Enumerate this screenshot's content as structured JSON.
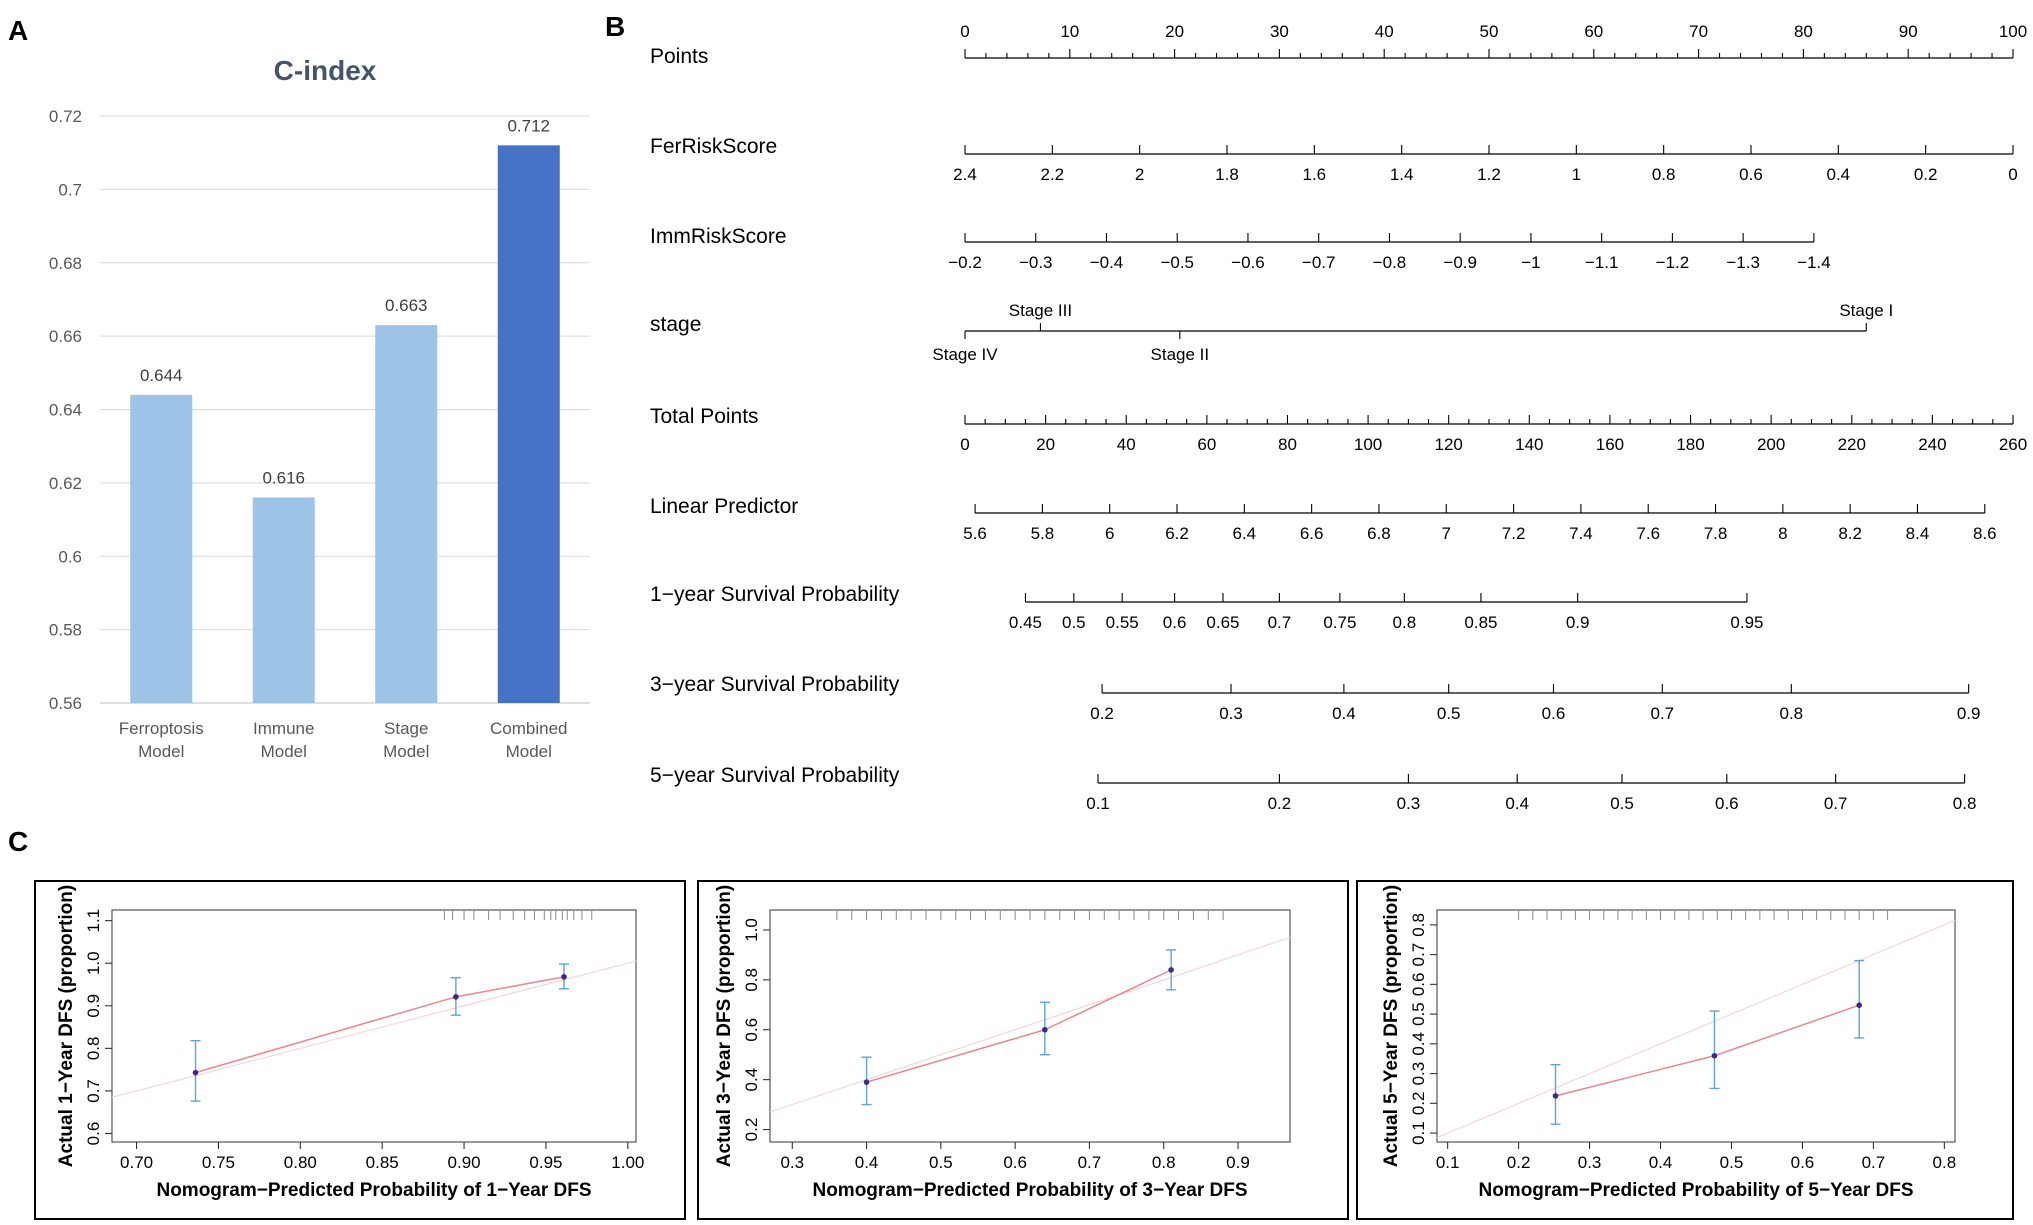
{
  "panels": {
    "a": "A",
    "b": "B",
    "c": "C"
  },
  "chart_data": [
    {
      "type": "bar",
      "title": "C-index",
      "categories": [
        "Ferroptosis Model",
        "Immune Model",
        "Stage Model",
        "Combined Model"
      ],
      "category_lines": [
        [
          "Ferroptosis",
          "Model"
        ],
        [
          "Immune",
          "Model"
        ],
        [
          "Stage",
          "Model"
        ],
        [
          "Combined",
          "Model"
        ]
      ],
      "values": [
        0.644,
        0.616,
        0.663,
        0.712
      ],
      "value_labels": [
        "0.644",
        "0.616",
        "0.663",
        "0.712"
      ],
      "ylim": [
        0.56,
        0.72
      ],
      "yticks": [
        "0.56",
        "0.58",
        "0.6",
        "0.62",
        "0.64",
        "0.66",
        "0.68",
        "0.7",
        "0.72"
      ],
      "grid": true,
      "colors": [
        "#9dc3e6",
        "#9dc3e6",
        "#9dc3e6",
        "#4472c4"
      ]
    },
    {
      "type": "nomogram",
      "scales": [
        {
          "name": "Points",
          "domain": [
            0,
            100
          ],
          "labels": [
            {
              "v": 0,
              "t": "0"
            },
            {
              "v": 10,
              "t": "10"
            },
            {
              "v": 20,
              "t": "20"
            },
            {
              "v": 30,
              "t": "30"
            },
            {
              "v": 40,
              "t": "40"
            },
            {
              "v": 50,
              "t": "50"
            },
            {
              "v": 60,
              "t": "60"
            },
            {
              "v": 70,
              "t": "70"
            },
            {
              "v": 80,
              "t": "80"
            },
            {
              "v": 90,
              "t": "90"
            },
            {
              "v": 100,
              "t": "100"
            }
          ],
          "minor_step": 2,
          "label_pos": "above"
        },
        {
          "name": "FerRiskScore",
          "domain": [
            2.4,
            0
          ],
          "labels": [
            {
              "v": 2.4,
              "t": "2.4"
            },
            {
              "v": 2.2,
              "t": "2.2"
            },
            {
              "v": 2,
              "t": "2"
            },
            {
              "v": 1.8,
              "t": "1.8"
            },
            {
              "v": 1.6,
              "t": "1.6"
            },
            {
              "v": 1.4,
              "t": "1.4"
            },
            {
              "v": 1.2,
              "t": "1.2"
            },
            {
              "v": 1,
              "t": "1"
            },
            {
              "v": 0.8,
              "t": "0.8"
            },
            {
              "v": 0.6,
              "t": "0.6"
            },
            {
              "v": 0.4,
              "t": "0.4"
            },
            {
              "v": 0.2,
              "t": "0.2"
            },
            {
              "v": 0,
              "t": "0"
            }
          ],
          "label_pos": "below"
        },
        {
          "name": "ImmRiskScore",
          "domain": [
            -0.2,
            -1.4
          ],
          "labels": [
            {
              "v": -0.2,
              "t": "−0.2"
            },
            {
              "v": -0.3,
              "t": "−0.3"
            },
            {
              "v": -0.4,
              "t": "−0.4"
            },
            {
              "v": -0.5,
              "t": "−0.5"
            },
            {
              "v": -0.6,
              "t": "−0.6"
            },
            {
              "v": -0.7,
              "t": "−0.7"
            },
            {
              "v": -0.8,
              "t": "−0.8"
            },
            {
              "v": -0.9,
              "t": "−0.9"
            },
            {
              "v": -1.0,
              "t": "−1"
            },
            {
              "v": -1.1,
              "t": "−1.1"
            },
            {
              "v": -1.2,
              "t": "−1.2"
            },
            {
              "v": -1.3,
              "t": "−1.3"
            },
            {
              "v": -1.4,
              "t": "−1.4"
            }
          ],
          "label_pos": "below"
        },
        {
          "name": "stage",
          "type": "categorical",
          "labels": [
            {
              "t": "Stage IV",
              "points": 0,
              "pos": "below"
            },
            {
              "t": "Stage III",
              "points": 7.2,
              "pos": "above"
            },
            {
              "t": "Stage II",
              "points": 20.5,
              "pos": "below"
            },
            {
              "t": "Stage I",
              "points": 86,
              "pos": "above"
            }
          ]
        },
        {
          "name": "Total Points",
          "domain": [
            0,
            260
          ],
          "labels": [
            {
              "v": 0,
              "t": "0"
            },
            {
              "v": 20,
              "t": "20"
            },
            {
              "v": 40,
              "t": "40"
            },
            {
              "v": 60,
              "t": "60"
            },
            {
              "v": 80,
              "t": "80"
            },
            {
              "v": 100,
              "t": "100"
            },
            {
              "v": 120,
              "t": "120"
            },
            {
              "v": 140,
              "t": "140"
            },
            {
              "v": 160,
              "t": "160"
            },
            {
              "v": 180,
              "t": "180"
            },
            {
              "v": 200,
              "t": "200"
            },
            {
              "v": 220,
              "t": "220"
            },
            {
              "v": 240,
              "t": "240"
            },
            {
              "v": 260,
              "t": "260"
            }
          ],
          "minor_step": 5,
          "label_pos": "below"
        },
        {
          "name": "Linear Predictor",
          "linear_domain": [
            5.6,
            8.6
          ],
          "total_points_at_ends": [
            2.5,
            253
          ],
          "labels": [
            {
              "v": 5.6,
              "t": "5.6"
            },
            {
              "v": 5.8,
              "t": "5.8"
            },
            {
              "v": 6,
              "t": "6"
            },
            {
              "v": 6.2,
              "t": "6.2"
            },
            {
              "v": 6.4,
              "t": "6.4"
            },
            {
              "v": 6.6,
              "t": "6.6"
            },
            {
              "v": 6.8,
              "t": "6.8"
            },
            {
              "v": 7,
              "t": "7"
            },
            {
              "v": 7.2,
              "t": "7.2"
            },
            {
              "v": 7.4,
              "t": "7.4"
            },
            {
              "v": 7.6,
              "t": "7.6"
            },
            {
              "v": 7.8,
              "t": "7.8"
            },
            {
              "v": 8,
              "t": "8"
            },
            {
              "v": 8.2,
              "t": "8.2"
            },
            {
              "v": 8.4,
              "t": "8.4"
            },
            {
              "v": 8.6,
              "t": "8.6"
            }
          ],
          "label_pos": "below"
        },
        {
          "name": "1−year Survival Probability",
          "label_pos": "below",
          "labels": [
            {
              "tp": 15,
              "t": "0.45"
            },
            {
              "tp": 27,
              "t": "0.5"
            },
            {
              "tp": 39,
              "t": "0.55"
            },
            {
              "tp": 52,
              "t": "0.6"
            },
            {
              "tp": 64,
              "t": "0.65"
            },
            {
              "tp": 78,
              "t": "0.7"
            },
            {
              "tp": 93,
              "t": "0.75"
            },
            {
              "tp": 109,
              "t": "0.8"
            },
            {
              "tp": 128,
              "t": "0.85"
            },
            {
              "tp": 152,
              "t": "0.9"
            },
            {
              "tp": 194,
              "t": "0.95"
            }
          ]
        },
        {
          "name": "3−year Survival Probability",
          "label_pos": "below",
          "labels": [
            {
              "tp": 34,
              "t": "0.2"
            },
            {
              "tp": 66,
              "t": "0.3"
            },
            {
              "tp": 94,
              "t": "0.4"
            },
            {
              "tp": 120,
              "t": "0.5"
            },
            {
              "tp": 146,
              "t": "0.6"
            },
            {
              "tp": 173,
              "t": "0.7"
            },
            {
              "tp": 205,
              "t": "0.8"
            },
            {
              "tp": 249,
              "t": "0.9"
            }
          ]
        },
        {
          "name": "5−year Survival Probability",
          "label_pos": "below",
          "labels": [
            {
              "tp": 33,
              "t": "0.1"
            },
            {
              "tp": 78,
              "t": "0.2"
            },
            {
              "tp": 110,
              "t": "0.3"
            },
            {
              "tp": 137,
              "t": "0.4"
            },
            {
              "tp": 163,
              "t": "0.5"
            },
            {
              "tp": 189,
              "t": "0.6"
            },
            {
              "tp": 216,
              "t": "0.7"
            },
            {
              "tp": 248,
              "t": "0.8"
            }
          ]
        }
      ]
    },
    {
      "type": "scatter",
      "xlabel": "Nomogram−Predicted Probability of 1−Year DFS",
      "ylabel": "Actual 1−Year DFS (proportion)",
      "xlim": [
        0.685,
        1.005
      ],
      "ylim": [
        0.58,
        1.125
      ],
      "xticks": [
        {
          "v": 0.7,
          "t": "0.70"
        },
        {
          "v": 0.75,
          "t": "0.75"
        },
        {
          "v": 0.8,
          "t": "0.80"
        },
        {
          "v": 0.85,
          "t": "0.85"
        },
        {
          "v": 0.9,
          "t": "0.90"
        },
        {
          "v": 0.95,
          "t": "0.95"
        },
        {
          "v": 1.0,
          "t": "1.00"
        }
      ],
      "yticks": [
        {
          "v": 0.6,
          "t": "0.6"
        },
        {
          "v": 0.7,
          "t": "0.7"
        },
        {
          "v": 0.8,
          "t": "0.8"
        },
        {
          "v": 0.9,
          "t": "0.9"
        },
        {
          "v": 1.0,
          "t": "1.0"
        },
        {
          "v": 1.1,
          "t": "1.1"
        }
      ],
      "points": [
        {
          "x": 0.736,
          "y": 0.743,
          "lo": 0.676,
          "hi": 0.818
        },
        {
          "x": 0.895,
          "y": 0.921,
          "lo": 0.878,
          "hi": 0.966
        },
        {
          "x": 0.961,
          "y": 0.968,
          "lo": 0.94,
          "hi": 0.998
        }
      ],
      "rug": [
        0.888,
        0.893,
        0.9,
        0.906,
        0.915,
        0.922,
        0.93,
        0.937,
        0.943,
        0.949,
        0.953,
        0.956,
        0.96,
        0.963,
        0.967,
        0.972,
        0.978
      ]
    },
    {
      "type": "scatter",
      "xlabel": "Nomogram−Predicted Probability of 3−Year DFS",
      "ylabel": "Actual 3−Year DFS (proportion)",
      "xlim": [
        0.27,
        0.97
      ],
      "ylim": [
        0.15,
        1.08
      ],
      "xticks": [
        {
          "v": 0.3,
          "t": "0.3"
        },
        {
          "v": 0.4,
          "t": "0.4"
        },
        {
          "v": 0.5,
          "t": "0.5"
        },
        {
          "v": 0.6,
          "t": "0.6"
        },
        {
          "v": 0.7,
          "t": "0.7"
        },
        {
          "v": 0.8,
          "t": "0.8"
        },
        {
          "v": 0.9,
          "t": "0.9"
        }
      ],
      "yticks": [
        {
          "v": 0.2,
          "t": "0.2"
        },
        {
          "v": 0.4,
          "t": "0.4"
        },
        {
          "v": 0.6,
          "t": "0.6"
        },
        {
          "v": 0.8,
          "t": "0.8"
        },
        {
          "v": 1.0,
          "t": "1.0"
        }
      ],
      "points": [
        {
          "x": 0.4,
          "y": 0.39,
          "lo": 0.3,
          "hi": 0.49
        },
        {
          "x": 0.64,
          "y": 0.6,
          "lo": 0.5,
          "hi": 0.71
        },
        {
          "x": 0.81,
          "y": 0.84,
          "lo": 0.76,
          "hi": 0.92
        }
      ],
      "rug": [
        0.36,
        0.38,
        0.4,
        0.42,
        0.44,
        0.46,
        0.48,
        0.5,
        0.52,
        0.54,
        0.56,
        0.58,
        0.6,
        0.62,
        0.64,
        0.66,
        0.68,
        0.7,
        0.72,
        0.74,
        0.76,
        0.78,
        0.8,
        0.82,
        0.84,
        0.86,
        0.88
      ]
    },
    {
      "type": "scatter",
      "xlabel": "Nomogram−Predicted Probability of 5−Year DFS",
      "ylabel": "Actual 5−Year DFS (proportion)",
      "xlim": [
        0.085,
        0.815
      ],
      "ylim": [
        0.07,
        0.85
      ],
      "xticks": [
        {
          "v": 0.1,
          "t": "0.1"
        },
        {
          "v": 0.2,
          "t": "0.2"
        },
        {
          "v": 0.3,
          "t": "0.3"
        },
        {
          "v": 0.4,
          "t": "0.4"
        },
        {
          "v": 0.5,
          "t": "0.5"
        },
        {
          "v": 0.6,
          "t": "0.6"
        },
        {
          "v": 0.7,
          "t": "0.7"
        },
        {
          "v": 0.8,
          "t": "0.8"
        }
      ],
      "yticks": [
        {
          "v": 0.1,
          "t": "0.1"
        },
        {
          "v": 0.2,
          "t": "0.2"
        },
        {
          "v": 0.3,
          "t": "0.3"
        },
        {
          "v": 0.4,
          "t": "0.4"
        },
        {
          "v": 0.5,
          "t": "0.5"
        },
        {
          "v": 0.6,
          "t": "0.6"
        },
        {
          "v": 0.7,
          "t": "0.7"
        },
        {
          "v": 0.8,
          "t": "0.8"
        }
      ],
      "points": [
        {
          "x": 0.252,
          "y": 0.225,
          "lo": 0.13,
          "hi": 0.33
        },
        {
          "x": 0.476,
          "y": 0.36,
          "lo": 0.25,
          "hi": 0.51
        },
        {
          "x": 0.68,
          "y": 0.53,
          "lo": 0.42,
          "hi": 0.68
        }
      ],
      "rug": [
        0.2,
        0.22,
        0.24,
        0.26,
        0.28,
        0.3,
        0.32,
        0.34,
        0.36,
        0.38,
        0.4,
        0.42,
        0.44,
        0.46,
        0.48,
        0.5,
        0.52,
        0.54,
        0.56,
        0.58,
        0.6,
        0.62,
        0.64,
        0.66,
        0.68,
        0.7,
        0.72
      ]
    }
  ],
  "colors": {
    "bar_light": "#9dc3e6",
    "bar_dark": "#4472c4",
    "title": "#44546a",
    "axis_text": "#595959",
    "errorbar": "#5aa6d6",
    "fit_line": "#e8888f",
    "ideal_line": "#f4d7dc",
    "point": "#3b2a8c"
  }
}
